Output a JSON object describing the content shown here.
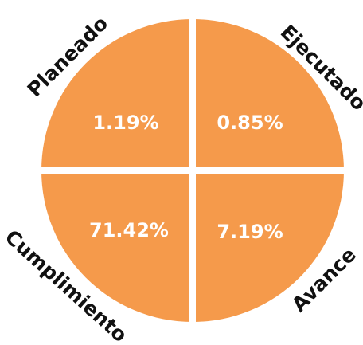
{
  "quadrants": [
    {
      "label": "Planeado",
      "value": "1.19%"
    },
    {
      "label": "Ejecutado",
      "value": "0.85%"
    },
    {
      "label": "Cumplimiento",
      "value": "71.42%"
    },
    {
      "label": "Avance",
      "value": "7.19%"
    }
  ]
}
